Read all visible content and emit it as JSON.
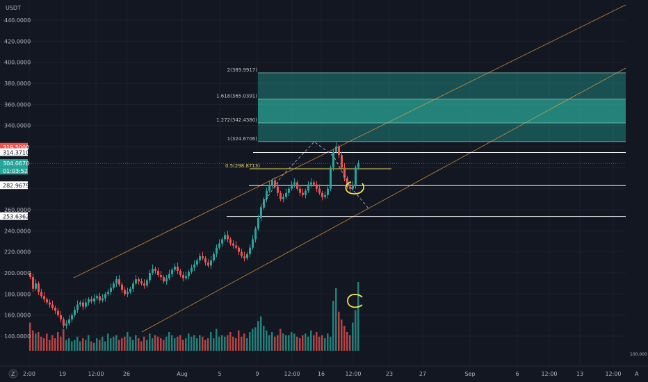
{
  "colors": {
    "background": "#131722",
    "grid": "#1e222d",
    "up": "#26a69a",
    "down": "#ef5350",
    "channel": "#e8a13a",
    "fib_zone": "#1f8a82",
    "fib_zone_strong": "#2aa898",
    "white_level": "#ffffff",
    "half_level": "#e6d560",
    "annotation": "#f5e64a"
  },
  "header": {
    "currency": "USDT",
    "corner_button": "A"
  },
  "price_axis": {
    "ticks": [
      "440.0000",
      "420.0000",
      "400.0000",
      "380.0000",
      "360.0000",
      "340.0000",
      "260.0000",
      "240.0000",
      "220.0000",
      "200.0000",
      "180.0000",
      "160.0000",
      "140.0000"
    ],
    "volume_label": "100.000"
  },
  "price_tags": [
    {
      "text": "319.5000",
      "style": "red",
      "value": 319.5
    },
    {
      "text": "314.3710",
      "style": "white",
      "value": 314.371
    },
    {
      "text": "304.0670",
      "style": "teal",
      "value": 304.067
    },
    {
      "text": "01:03:52",
      "style": "teal",
      "value": 304.067,
      "sub": true
    },
    {
      "text": "282.9679",
      "style": "white",
      "value": 282.9679
    },
    {
      "text": "253.6362",
      "style": "white",
      "value": 253.6362
    }
  ],
  "time_axis": {
    "labels": [
      "2:00",
      "19",
      "12:00",
      "26",
      "Aug",
      "5",
      "9",
      "12:00",
      "16",
      "12:00",
      "23",
      "27",
      "Sep",
      "6",
      "12:00",
      "13",
      "12:00"
    ],
    "left_icon": "Z"
  },
  "fib_levels": [
    {
      "label": "2(389.9917)",
      "value": 389.9917,
      "style": "normal"
    },
    {
      "label": "1.618(365.0391)",
      "value": 365.0391,
      "style": "normal"
    },
    {
      "label": "1.272(342.4380)",
      "value": 342.438,
      "style": "normal"
    },
    {
      "label": "1(324.6706)",
      "value": 324.6706,
      "style": "normal"
    },
    {
      "label": "0.5(298.8713)",
      "value": 298.8713,
      "style": "half"
    }
  ],
  "chart_data": {
    "type": "candlestick",
    "y_range": [
      130,
      450
    ],
    "horizontal_levels": [
      314.371,
      282.9679,
      253.6362
    ],
    "current_price": 304.067,
    "closes": [
      196,
      185,
      190,
      182,
      178,
      175,
      172,
      170,
      167,
      164,
      160,
      156,
      150,
      152,
      156,
      160,
      165,
      170,
      172,
      168,
      172,
      175,
      173,
      176,
      178,
      174,
      176,
      180,
      182,
      186,
      190,
      194,
      189,
      184,
      180,
      182,
      185,
      190,
      194,
      192,
      190,
      188,
      193,
      200,
      204,
      202,
      198,
      196,
      192,
      195,
      199,
      203,
      206,
      202,
      198,
      195,
      197,
      201,
      205,
      208,
      212,
      216,
      214,
      210,
      207,
      212,
      218,
      224,
      228,
      232,
      236,
      232,
      228,
      226,
      224,
      220,
      216,
      214,
      218,
      224,
      232,
      242,
      252,
      262,
      270,
      278,
      283,
      288,
      282,
      276,
      270,
      272,
      276,
      280,
      284,
      286,
      280,
      276,
      274,
      278,
      284,
      286,
      284,
      280,
      276,
      272,
      274,
      280,
      300,
      315,
      320,
      312,
      300,
      290,
      282,
      280,
      283,
      300,
      304
    ],
    "volumes": [
      18,
      13,
      11,
      12,
      9,
      8,
      11,
      7,
      10,
      8,
      12,
      9,
      14,
      7,
      8,
      6,
      7,
      9,
      6,
      8,
      7,
      10,
      6,
      5,
      8,
      7,
      9,
      6,
      11,
      8,
      9,
      10,
      7,
      8,
      9,
      12,
      9,
      7,
      10,
      8,
      6,
      9,
      7,
      11,
      8,
      10,
      9,
      8,
      7,
      9,
      12,
      10,
      8,
      9,
      10,
      7,
      8,
      11,
      9,
      10,
      8,
      10,
      9,
      7,
      8,
      12,
      8,
      14,
      9,
      10,
      9,
      10,
      12,
      9,
      8,
      13,
      9,
      11,
      8,
      12,
      14,
      15,
      19,
      22,
      16,
      13,
      10,
      12,
      9,
      10,
      14,
      11,
      10,
      10,
      12,
      11,
      9,
      8,
      10,
      11,
      9,
      13,
      10,
      12,
      9,
      10,
      8,
      11,
      9,
      32,
      40,
      25,
      20,
      16,
      12,
      10,
      18,
      26,
      44
    ]
  },
  "annotations": [
    {
      "name": "yellow-circle-price",
      "type": "circle"
    },
    {
      "name": "yellow-hook-volume",
      "type": "hook"
    }
  ]
}
